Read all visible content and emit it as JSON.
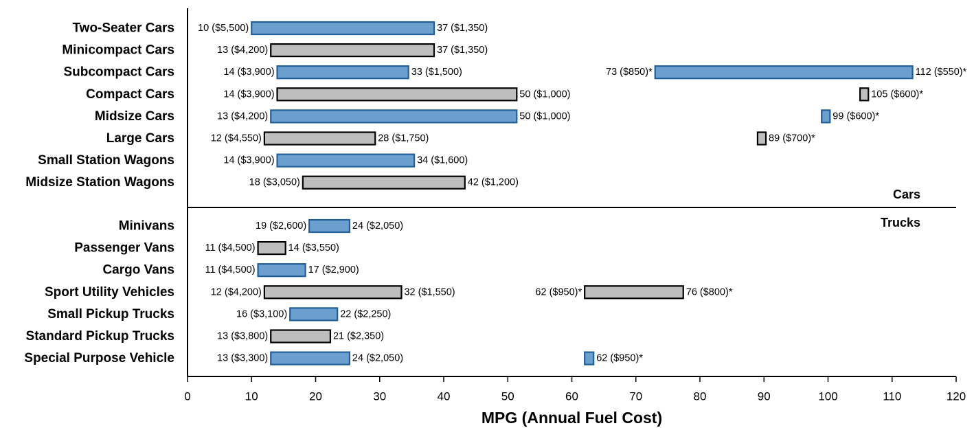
{
  "chart_data": {
    "type": "bar",
    "subtype": "floating-range",
    "xlabel": "MPG (Annual Fuel Cost)",
    "xlim": [
      0,
      120
    ],
    "xticks": [
      0,
      10,
      20,
      30,
      40,
      50,
      60,
      70,
      80,
      90,
      100,
      110,
      120
    ],
    "grid": false,
    "legend": "none",
    "colors": {
      "blue_fill": "#6b9fcd",
      "blue_stroke": "#1f5f9c",
      "gray_fill": "#bebebe",
      "gray_stroke": "#000000"
    },
    "sections": [
      {
        "name": "Cars",
        "categories": [
          {
            "label": "Two-Seater Cars",
            "color": "blue",
            "ranges": [
              {
                "low": 10,
                "high": 38.5,
                "low_label": "10 ($5,500)",
                "high_label": "37 ($1,350)"
              }
            ]
          },
          {
            "label": "Minicompact Cars",
            "color": "gray",
            "ranges": [
              {
                "low": 13,
                "high": 38.5,
                "low_label": "13 ($4,200)",
                "high_label": "37 ($1,350)"
              }
            ]
          },
          {
            "label": "Subcompact Cars",
            "color": "blue",
            "ranges": [
              {
                "low": 14,
                "high": 34.5,
                "low_label": "14 ($3,900)",
                "high_label": "33 ($1,500)"
              },
              {
                "low": 73,
                "high": 113.2,
                "low_label": "73 ($850)*",
                "high_label": "112 ($550)*"
              }
            ]
          },
          {
            "label": "Compact Cars",
            "color": "gray",
            "ranges": [
              {
                "low": 14,
                "high": 51.4,
                "low_label": "14 ($3,900)",
                "high_label": "50 ($1,000)"
              },
              {
                "low": 105,
                "high": 106.3,
                "low_label": "",
                "high_label": "105 ($600)*"
              }
            ]
          },
          {
            "label": "Midsize Cars",
            "color": "blue",
            "ranges": [
              {
                "low": 13,
                "high": 51.4,
                "low_label": "13 ($4,200)",
                "high_label": "50 ($1,000)"
              },
              {
                "low": 99,
                "high": 100.3,
                "low_label": "",
                "high_label": "99 ($600)*"
              }
            ]
          },
          {
            "label": "Large Cars",
            "color": "gray",
            "ranges": [
              {
                "low": 12,
                "high": 29.3,
                "low_label": "12 ($4,550)",
                "high_label": "28 ($1,750)"
              },
              {
                "low": 89,
                "high": 90.3,
                "low_label": "",
                "high_label": "89 ($700)*"
              }
            ]
          },
          {
            "label": "Small Station Wagons",
            "color": "blue",
            "ranges": [
              {
                "low": 14,
                "high": 35.4,
                "low_label": "14 ($3,900)",
                "high_label": "34 ($1,600)"
              }
            ]
          },
          {
            "label": "Midsize Station Wagons",
            "color": "gray",
            "ranges": [
              {
                "low": 18,
                "high": 43.3,
                "low_label": "18 ($3,050)",
                "high_label": "42 ($1,200)"
              }
            ]
          }
        ]
      },
      {
        "name": "Trucks",
        "categories": [
          {
            "label": "Minivans",
            "color": "blue",
            "ranges": [
              {
                "low": 19,
                "high": 25.3,
                "low_label": "19 ($2,600)",
                "high_label": "24 ($2,050)"
              }
            ]
          },
          {
            "label": "Passenger Vans",
            "color": "gray",
            "ranges": [
              {
                "low": 11,
                "high": 15.3,
                "low_label": "11 ($4,500)",
                "high_label": "14 ($3,550)"
              }
            ]
          },
          {
            "label": "Cargo Vans",
            "color": "blue",
            "ranges": [
              {
                "low": 11,
                "high": 18.4,
                "low_label": "11 ($4,500)",
                "high_label": "17 ($2,900)"
              }
            ]
          },
          {
            "label": "Sport Utility Vehicles",
            "color": "gray",
            "ranges": [
              {
                "low": 12,
                "high": 33.4,
                "low_label": "12 ($4,200)",
                "high_label": "32 ($1,550)"
              },
              {
                "low": 62,
                "high": 77.4,
                "low_label": "62 ($950)*",
                "high_label": "76 ($800)*"
              }
            ]
          },
          {
            "label": "Small Pickup Trucks",
            "color": "blue",
            "ranges": [
              {
                "low": 16,
                "high": 23.4,
                "low_label": "16 ($3,100)",
                "high_label": "22 ($2,250)"
              }
            ]
          },
          {
            "label": "Standard Pickup Trucks",
            "color": "gray",
            "ranges": [
              {
                "low": 13,
                "high": 22.3,
                "low_label": "13 ($3,800)",
                "high_label": "21 ($2,350)"
              }
            ]
          },
          {
            "label": "Special Purpose Vehicle",
            "color": "blue",
            "ranges": [
              {
                "low": 13,
                "high": 25.3,
                "low_label": "13 ($3,300)",
                "high_label": "24 ($2,050)"
              },
              {
                "low": 62,
                "high": 63.4,
                "low_label": "",
                "high_label": "62 ($950)*"
              }
            ]
          }
        ]
      }
    ]
  }
}
